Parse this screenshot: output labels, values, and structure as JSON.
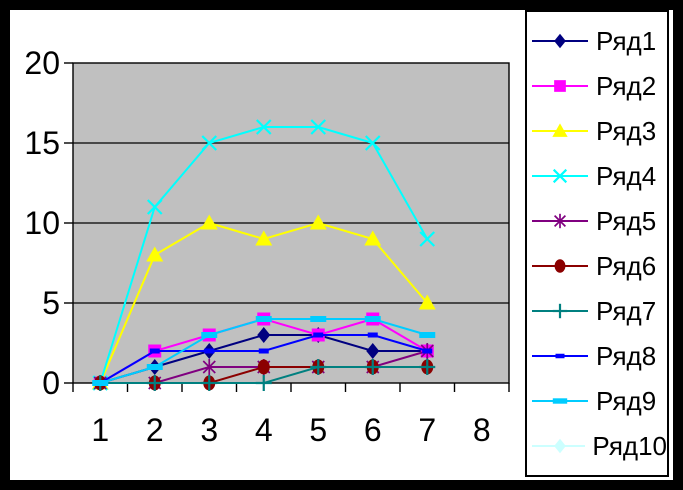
{
  "chart_data": {
    "type": "line",
    "title": "",
    "xlabel": "",
    "ylabel": "",
    "x_categories": [
      "1",
      "2",
      "3",
      "4",
      "5",
      "6",
      "7",
      "8"
    ],
    "y_ticks": [
      "0",
      "5",
      "10",
      "15",
      "20"
    ],
    "ylim": [
      0,
      20
    ],
    "grid": true,
    "plot_bg_color": "#c0c0c0",
    "outer_bg_color": "#ffffff",
    "frame_color": "#000000",
    "legend_position": "right",
    "series": [
      {
        "name": "Ряд1",
        "color": "#000080",
        "marker": "diamond",
        "values": [
          0,
          1,
          2,
          3,
          3,
          2,
          2
        ]
      },
      {
        "name": "Ряд2",
        "color": "#ff00ff",
        "marker": "square",
        "values": [
          0,
          2,
          3,
          4,
          3,
          4,
          2
        ]
      },
      {
        "name": "Ряд3",
        "color": "#ffff00",
        "marker": "triangle",
        "values": [
          0,
          8,
          10,
          9,
          10,
          9,
          5
        ]
      },
      {
        "name": "Ряд4",
        "color": "#00ffff",
        "marker": "x",
        "values": [
          0,
          11,
          15,
          16,
          16,
          15,
          9
        ]
      },
      {
        "name": "Ряд5",
        "color": "#800080",
        "marker": "star",
        "values": [
          0,
          0,
          1,
          1,
          1,
          1,
          2
        ]
      },
      {
        "name": "Ряд6",
        "color": "#8b0000",
        "marker": "circle",
        "values": [
          0,
          0,
          0,
          1,
          1,
          1,
          1
        ]
      },
      {
        "name": "Ряд7",
        "color": "#008080",
        "marker": "plus",
        "values": [
          0,
          0,
          0,
          0,
          1,
          1,
          1
        ]
      },
      {
        "name": "Ряд8",
        "color": "#0000ff",
        "marker": "dash",
        "values": [
          0,
          2,
          2,
          2,
          3,
          3,
          2
        ]
      },
      {
        "name": "Ряд9",
        "color": "#00ccff",
        "marker": "long-dash",
        "values": [
          0,
          1,
          3,
          4,
          4,
          4,
          3
        ]
      },
      {
        "name": "Ряд10",
        "color": "#ccffff",
        "marker": "diamond",
        "values": []
      }
    ]
  }
}
